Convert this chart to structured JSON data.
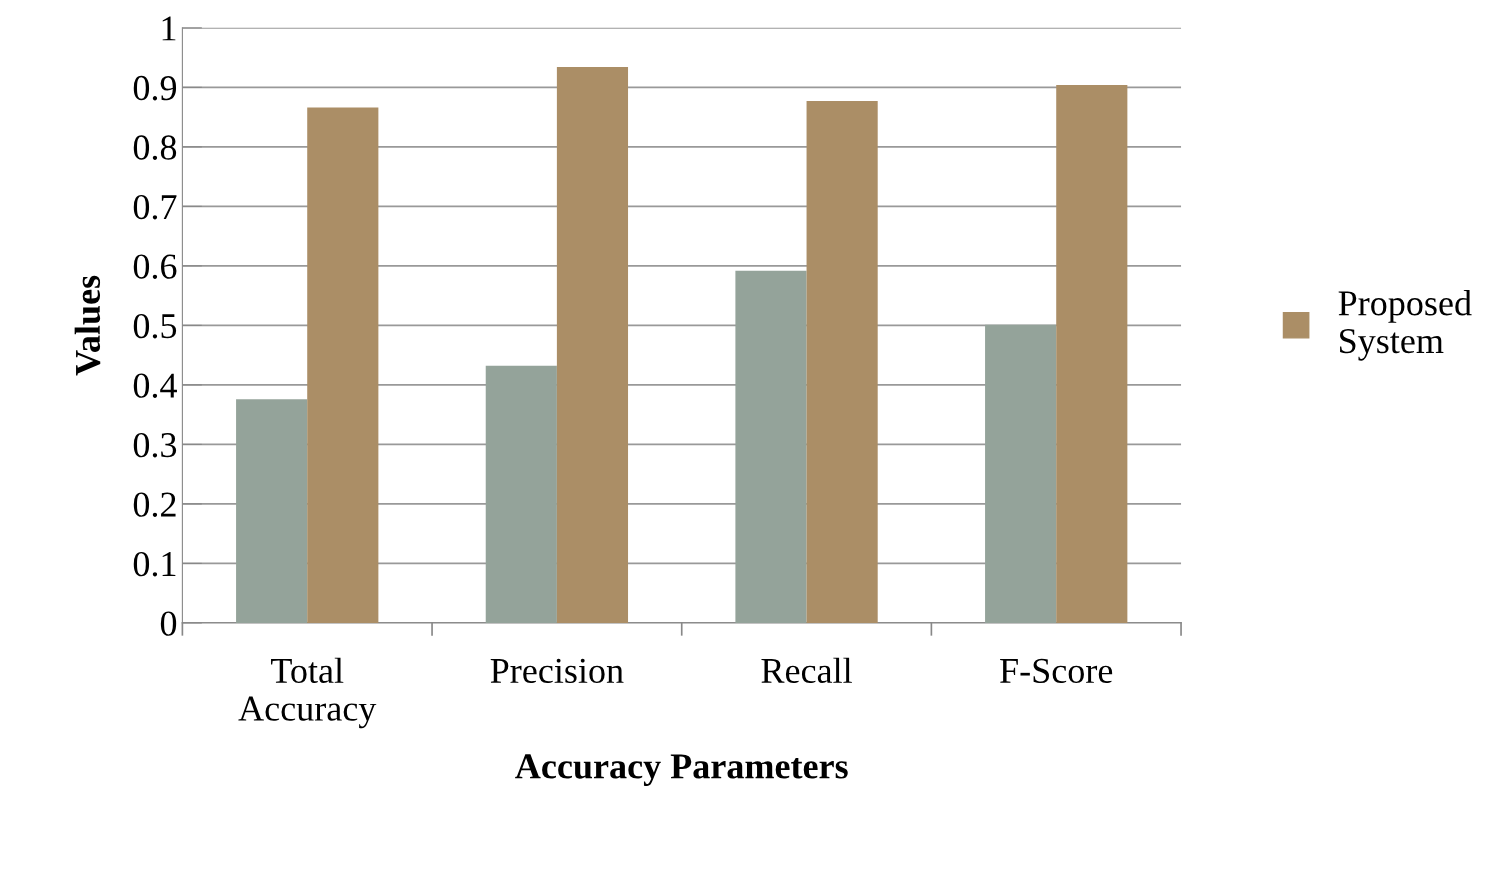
{
  "chart_data": {
    "type": "bar",
    "xlabel": "Accuracy Parameters",
    "ylabel": "Values",
    "categories": [
      "Total\nAccuracy",
      "Precision",
      "Recall",
      "F-Score"
    ],
    "series": [
      {
        "color": "#94a39a",
        "values": [
          0.376,
          0.432,
          0.592,
          0.501
        ]
      },
      {
        "name": "Proposed\nSystem",
        "color": "#ab8e66",
        "values": [
          0.866,
          0.934,
          0.877,
          0.904
        ]
      }
    ],
    "ylim": [
      0,
      1
    ],
    "yticks": [
      0,
      0.1,
      0.2,
      0.3,
      0.4,
      0.5,
      0.6,
      0.7,
      0.8,
      0.9,
      1
    ],
    "grid": "y",
    "legend": "right"
  }
}
